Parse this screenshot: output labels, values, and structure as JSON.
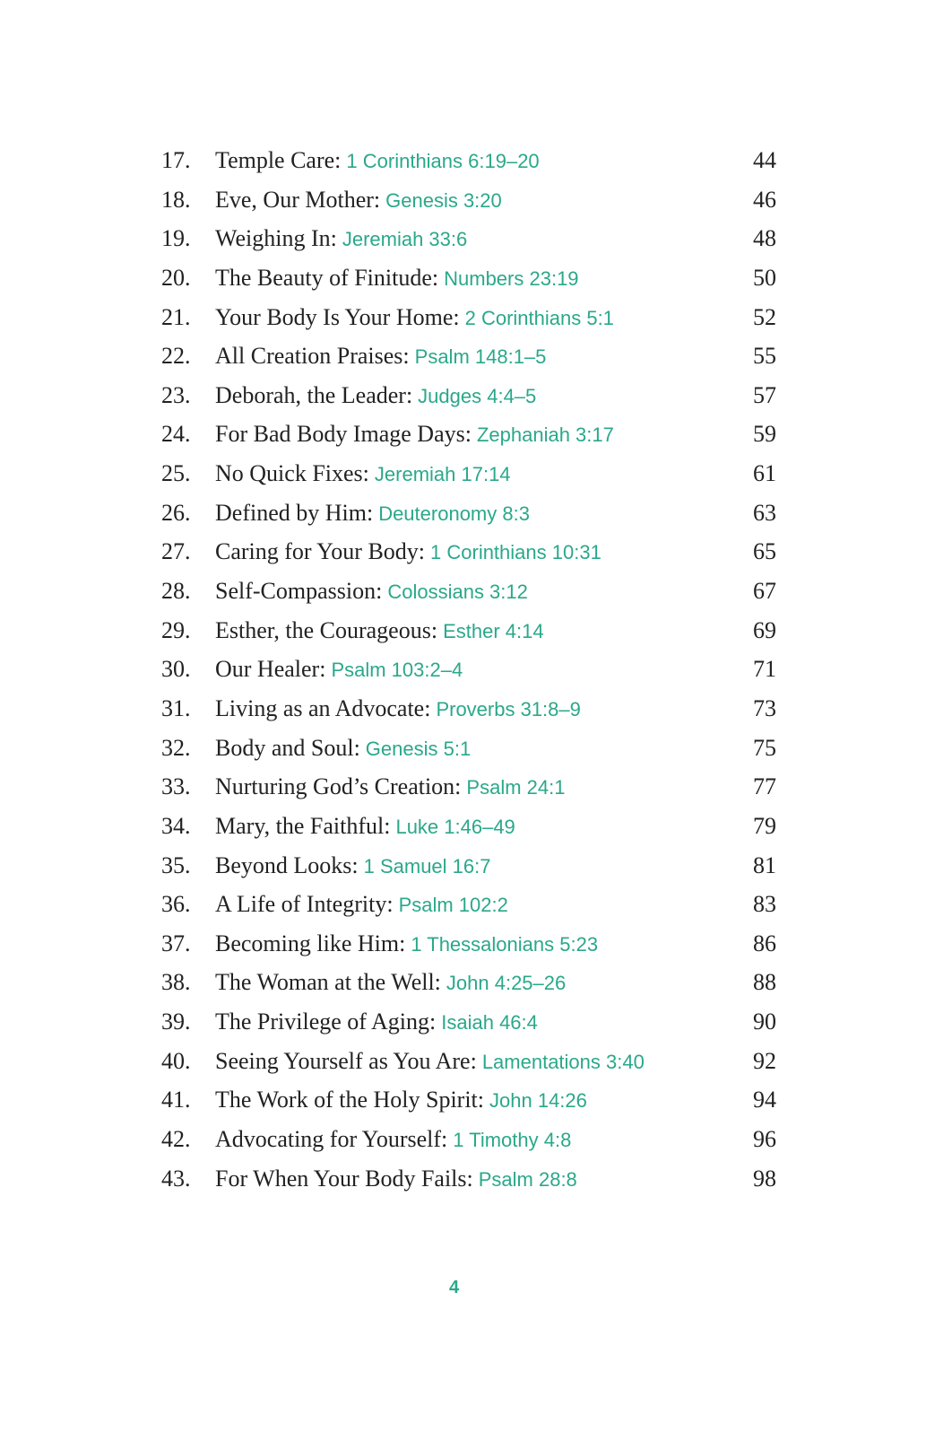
{
  "accent_color": "#2aa88a",
  "entries": [
    {
      "num": "17.",
      "title": "Temple Care:",
      "ref": "1 Corinthians 6:19–20",
      "page": "44"
    },
    {
      "num": "18.",
      "title": "Eve, Our Mother:",
      "ref": "Genesis 3:20",
      "page": "46"
    },
    {
      "num": "19.",
      "title": "Weighing In:",
      "ref": "Jeremiah 33:6",
      "page": "48"
    },
    {
      "num": "20.",
      "title": "The Beauty of Finitude:",
      "ref": "Numbers 23:19",
      "page": "50"
    },
    {
      "num": "21.",
      "title": "Your Body Is Your Home:",
      "ref": "2 Corinthians 5:1",
      "page": "52"
    },
    {
      "num": "22.",
      "title": "All Creation Praises:",
      "ref": "Psalm 148:1–5",
      "page": "55"
    },
    {
      "num": "23.",
      "title": "Deborah, the Leader:",
      "ref": "Judges 4:4–5",
      "page": "57"
    },
    {
      "num": "24.",
      "title": "For Bad Body Image Days:",
      "ref": "Zephaniah 3:17",
      "page": "59"
    },
    {
      "num": "25.",
      "title": "No Quick Fixes:",
      "ref": "Jeremiah 17:14",
      "page": "61"
    },
    {
      "num": "26.",
      "title": "Defined by Him:",
      "ref": "Deuteronomy 8:3",
      "page": "63"
    },
    {
      "num": "27.",
      "title": "Caring for Your Body:",
      "ref": "1 Corinthians 10:31",
      "page": "65"
    },
    {
      "num": "28.",
      "title": "Self-Compassion:",
      "ref": "Colossians 3:12",
      "page": "67"
    },
    {
      "num": "29.",
      "title": "Esther, the Courageous:",
      "ref": "Esther 4:14",
      "page": "69"
    },
    {
      "num": "30.",
      "title": "Our Healer:",
      "ref": "Psalm 103:2–4",
      "page": "71"
    },
    {
      "num": "31.",
      "title": "Living as an Advocate:",
      "ref": "Proverbs 31:8–9",
      "page": "73"
    },
    {
      "num": "32.",
      "title": "Body and Soul:",
      "ref": "Genesis 5:1",
      "page": "75"
    },
    {
      "num": "33.",
      "title": "Nurturing God’s Creation:",
      "ref": "Psalm 24:1",
      "page": "77"
    },
    {
      "num": "34.",
      "title": "Mary, the Faithful:",
      "ref": "Luke 1:46–49",
      "page": "79"
    },
    {
      "num": "35.",
      "title": "Beyond Looks:",
      "ref": "1 Samuel 16:7",
      "page": "81"
    },
    {
      "num": "36.",
      "title": "A Life of Integrity:",
      "ref": "Psalm 102:2",
      "page": "83"
    },
    {
      "num": "37.",
      "title": "Becoming like Him:",
      "ref": "1 Thessalonians 5:23",
      "page": "86"
    },
    {
      "num": "38.",
      "title": "The Woman at the Well:",
      "ref": "John 4:25–26",
      "page": "88"
    },
    {
      "num": "39.",
      "title": "The Privilege of Aging:",
      "ref": "Isaiah 46:4",
      "page": "90"
    },
    {
      "num": "40.",
      "title": "Seeing Yourself as You Are:",
      "ref": "Lamentations 3:40",
      "page": "92"
    },
    {
      "num": "41.",
      "title": "The Work of the Holy Spirit:",
      "ref": "John 14:26",
      "page": "94"
    },
    {
      "num": "42.",
      "title": "Advocating for Yourself:",
      "ref": "1 Timothy 4:8",
      "page": "96"
    },
    {
      "num": "43.",
      "title": "For When Your Body Fails:",
      "ref": "Psalm 28:8",
      "page": "98"
    }
  ],
  "folio": "4"
}
